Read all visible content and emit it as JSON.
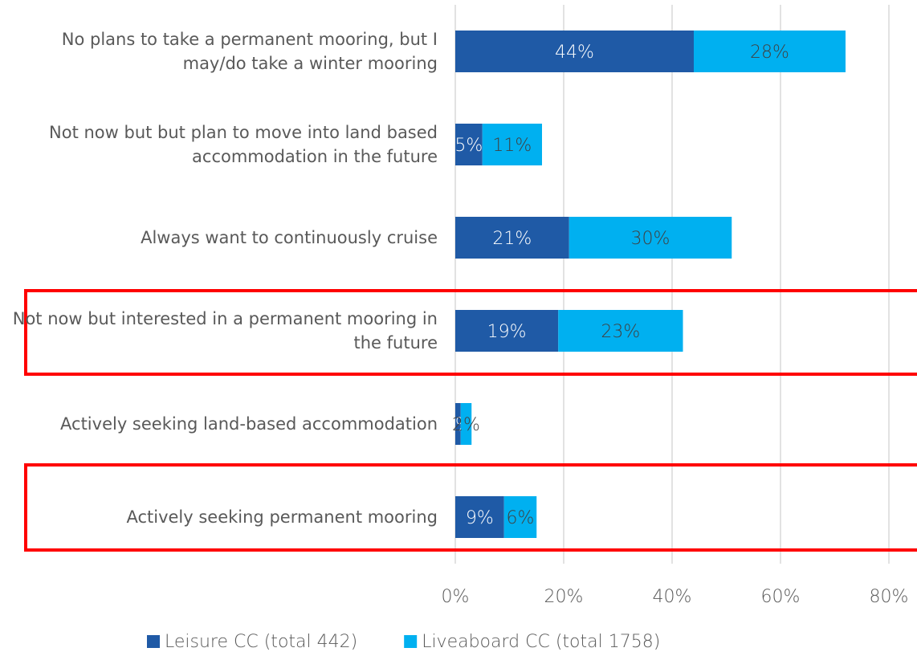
{
  "chart_data": {
    "type": "stacked-bar",
    "orientation": "horizontal",
    "categories": [
      "No plans to take a permanent mooring, but I may/do take a winter mooring",
      "Not now but but plan to move into land based accommodation in the future",
      "Always want to continuously cruise",
      "Not now but interested in a permanent mooring in the future",
      "Actively seeking land-based accommodation",
      "Actively seeking permanent mooring"
    ],
    "series": [
      {
        "name": "Leisure CC (total 442)",
        "color": "#1f5aa6",
        "values": [
          44,
          5,
          21,
          19,
          1,
          9
        ],
        "value_labels": [
          "44%",
          "5%",
          "21%",
          "19%",
          "1%",
          "9%"
        ]
      },
      {
        "name": "Liveaboard CC (total 1758)",
        "color": "#00b0f0",
        "values": [
          28,
          11,
          30,
          23,
          2,
          6
        ],
        "value_labels": [
          "28%",
          "11%",
          "30%",
          "23%",
          "2%",
          "6%"
        ]
      }
    ],
    "xlim": [
      0,
      80
    ],
    "xticks": [
      {
        "value": 0,
        "label": "0%"
      },
      {
        "value": 20,
        "label": "20%"
      },
      {
        "value": 40,
        "label": "40%"
      },
      {
        "value": 60,
        "label": "60%"
      },
      {
        "value": 80,
        "label": "80%"
      }
    ],
    "grid": true,
    "legend": "bottom"
  }
}
